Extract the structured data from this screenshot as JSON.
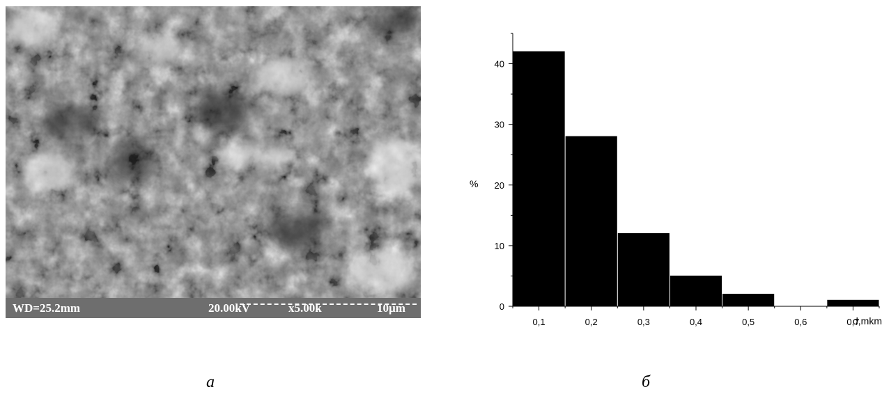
{
  "panel_a": {
    "info_bar": {
      "working_distance": "WD=25.2mm",
      "voltage": "20.00kV",
      "magnification": "x5.00k",
      "scale": "10µm"
    },
    "caption": "а"
  },
  "panel_b": {
    "caption": "б"
  },
  "chart_data": {
    "type": "bar",
    "categories": [
      "0,1",
      "0,2",
      "0,3",
      "0,4",
      "0,5",
      "0,6",
      "0,7"
    ],
    "values": [
      42,
      28,
      12,
      5,
      2,
      0,
      1
    ],
    "ylabel": "%",
    "xlabel": "d,mkm",
    "yticks": [
      "0",
      "10",
      "20",
      "30",
      "40"
    ],
    "ylim": [
      0,
      45
    ],
    "xlim": [
      0.05,
      0.75
    ],
    "grid": false,
    "bar_color": "#000000"
  }
}
